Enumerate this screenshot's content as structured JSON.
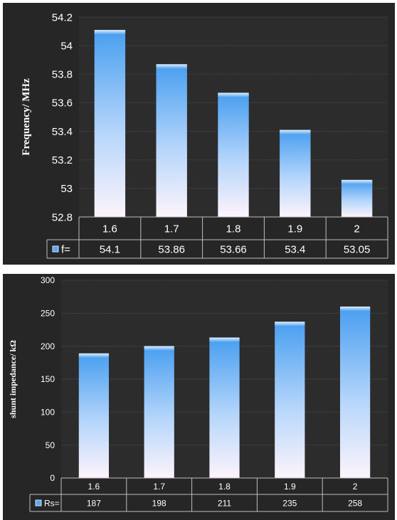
{
  "chart_data": [
    {
      "type": "bar",
      "ylabel": "Frequency/ MHz",
      "ylim": [
        52.8,
        54.2
      ],
      "yticks": [
        "52.8",
        "53",
        "53.2",
        "53.4",
        "53.6",
        "53.8",
        "54",
        "54.2"
      ],
      "categories": [
        "1.6",
        "1.7",
        "1.8",
        "1.9",
        "2"
      ],
      "series": [
        {
          "name": "f=",
          "values": [
            54.1,
            53.86,
            53.66,
            53.4,
            53.05
          ]
        }
      ],
      "table_values": [
        "54.1",
        "53.86",
        "53.66",
        "53.4",
        "53.05"
      ],
      "grid": true,
      "legend": "data-table"
    },
    {
      "type": "bar",
      "ylabel": "shunt impedance/  kΩ",
      "ylim": [
        0,
        300
      ],
      "yticks": [
        "0",
        "50",
        "100",
        "150",
        "200",
        "250",
        "300"
      ],
      "categories": [
        "1.6",
        "1.7",
        "1.8",
        "1.9",
        "2"
      ],
      "series": [
        {
          "name": "Rs=",
          "values": [
            187,
            198,
            211,
            235,
            258
          ]
        }
      ],
      "table_values": [
        "187",
        "198",
        "211",
        "235",
        "258"
      ],
      "grid": true,
      "legend": "data-table"
    }
  ],
  "colors": {
    "background": "#262626",
    "bar_top": "#4a9ff0",
    "bar_bottom": "#fdf4fb",
    "table_line": "#bfbfbf",
    "legend_key": "#5aa8f0"
  }
}
